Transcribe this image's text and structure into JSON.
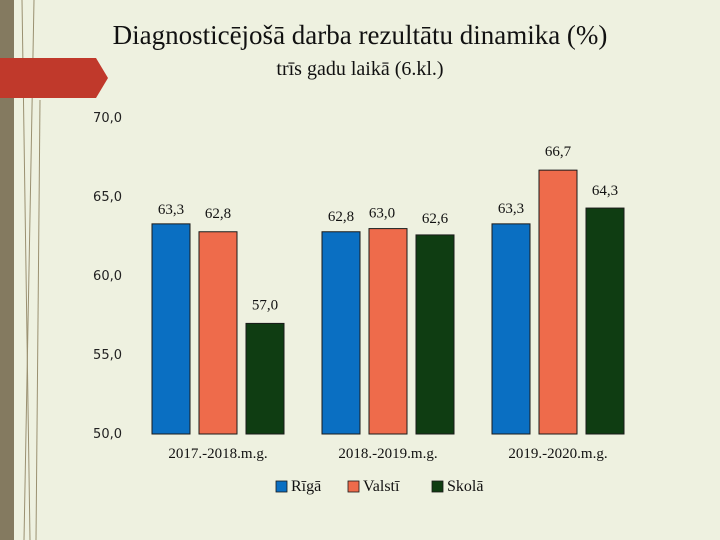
{
  "title": "Diagnosticējošā darba rezultātu dinamika (%)",
  "subtitle": "trīs gadu laikā (6.kl.)",
  "colors": {
    "background": "#eef1e0",
    "ribbon": "#c0392b",
    "stripe": "#847a60"
  },
  "chart_data": {
    "type": "bar",
    "categories": [
      "2017.-2018.m.g.",
      "2018.-2019.m.g.",
      "2019.-2020.m.g."
    ],
    "series": [
      {
        "name": "Rīgā",
        "values": [
          63.3,
          62.8,
          63.3
        ],
        "labels": [
          "63,3",
          "62,8",
          "63,3"
        ],
        "color": "#0a6fc2"
      },
      {
        "name": "Valstī",
        "values": [
          62.8,
          63.0,
          66.7
        ],
        "labels": [
          "62,8",
          "63,0",
          "66,7"
        ],
        "color": "#ee6b4b"
      },
      {
        "name": "Skolā",
        "values": [
          57.0,
          62.6,
          64.3
        ],
        "labels": [
          "57,0",
          "62,6",
          "64,3"
        ],
        "color": "#0f3d12"
      }
    ],
    "ylim": [
      50,
      70
    ],
    "yticks": [
      50,
      55,
      60,
      65,
      70
    ],
    "ytick_labels": [
      "50,0",
      "55,0",
      "60,0",
      "65,0",
      "70,0"
    ],
    "grid": false,
    "legend": "bottom"
  }
}
